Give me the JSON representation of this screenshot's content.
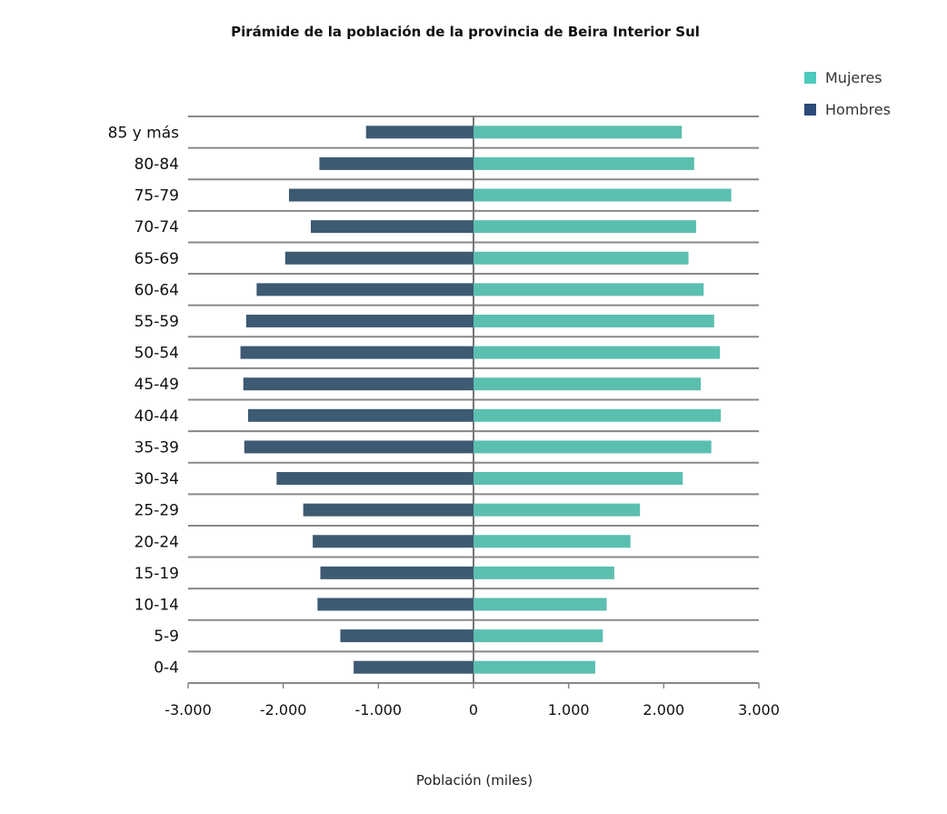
{
  "chart_data": {
    "type": "bar",
    "orientation": "horizontal",
    "title": "Pirámide de la población de la provincia de Beira Interior Sul",
    "xlabel": "Población (miles)",
    "ylabel": "",
    "xlim": [
      -3000,
      3000
    ],
    "xticks": [
      -3000,
      -2000,
      -1000,
      0,
      1000,
      2000,
      3000
    ],
    "xtick_labels": [
      "-3.000",
      "-2.000",
      "-1.000",
      "0",
      "1.000",
      "2.000",
      "3.000"
    ],
    "grid": "horizontal",
    "legend_position": "top-right",
    "categories": [
      "85 y más",
      "80-84",
      "75-79",
      "70-74",
      "65-69",
      "60-64",
      "55-59",
      "50-54",
      "45-49",
      "40-44",
      "35-39",
      "30-34",
      "25-29",
      "20-24",
      "15-19",
      "10-14",
      "5-9",
      "0-4"
    ],
    "series": [
      {
        "name": "Mujeres",
        "color": "#5bbfb0",
        "legend_color": "#4ec9bd",
        "values": [
          2190,
          2320,
          2710,
          2340,
          2260,
          2420,
          2530,
          2590,
          2390,
          2600,
          2500,
          2200,
          1750,
          1650,
          1480,
          1400,
          1360,
          1280
        ]
      },
      {
        "name": "Hombres",
        "color": "#3d5a73",
        "legend_color": "#2b4a78",
        "values": [
          -1130,
          -1620,
          -1940,
          -1710,
          -1980,
          -2280,
          -2390,
          -2450,
          -2420,
          -2370,
          -2410,
          -2070,
          -1790,
          -1690,
          -1610,
          -1640,
          -1400,
          -1260
        ]
      }
    ]
  }
}
